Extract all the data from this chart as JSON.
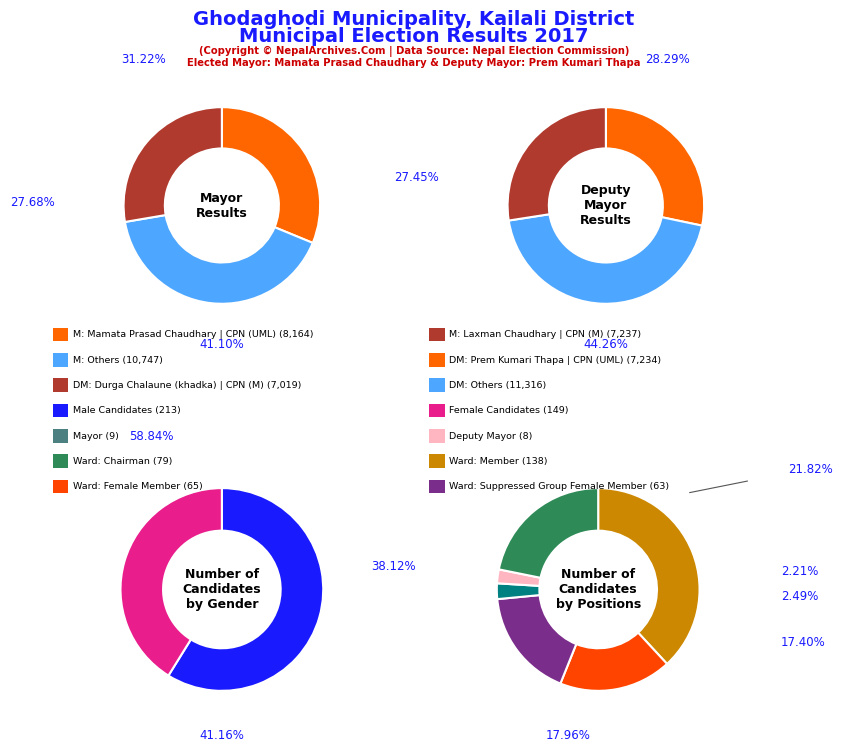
{
  "title_line1": "Ghodaghodi Municipality, Kailali District",
  "title_line2": "Municipal Election Results 2017",
  "subtitle1": "(Copyright © NepalArchives.Com | Data Source: Nepal Election Commission)",
  "subtitle2": "Elected Mayor: Mamata Prasad Chaudhary & Deputy Mayor: Prem Kumari Thapa",
  "title_color": "#1a1aff",
  "subtitle_color": "#cc0000",
  "mayor_values": [
    31.22,
    41.1,
    27.68
  ],
  "mayor_colors": [
    "#ff6600",
    "#4da6ff",
    "#b03a2e"
  ],
  "mayor_label": "Mayor\nResults",
  "deputy_values": [
    28.29,
    44.26,
    27.45
  ],
  "deputy_colors": [
    "#ff6600",
    "#4da6ff",
    "#b03a2e"
  ],
  "deputy_label": "Deputy\nMayor\nResults",
  "gender_values": [
    58.84,
    41.16
  ],
  "gender_colors": [
    "#1a1aff",
    "#e91e8c"
  ],
  "gender_label": "Number of\nCandidates\nby Gender",
  "positions_values": [
    38.12,
    17.96,
    17.4,
    2.49,
    2.21,
    21.82
  ],
  "positions_colors": [
    "#cc8800",
    "#ff4400",
    "#7b2d8b",
    "#008080",
    "#ffb6c1",
    "#2e8b57"
  ],
  "positions_label": "Number of\nCandidates\nby Positions",
  "legend_left": [
    {
      "label": "M: Mamata Prasad Chaudhary | CPN (UML) (8,164)",
      "color": "#ff6600"
    },
    {
      "label": "M: Others (10,747)",
      "color": "#4da6ff"
    },
    {
      "label": "DM: Durga Chalaune (khadka) | CPN (M) (7,019)",
      "color": "#b03a2e"
    },
    {
      "label": "Male Candidates (213)",
      "color": "#1a1aff"
    },
    {
      "label": "Mayor (9)",
      "color": "#4d8080"
    },
    {
      "label": "Ward: Chairman (79)",
      "color": "#2e8b57"
    },
    {
      "label": "Ward: Female Member (65)",
      "color": "#ff4400"
    }
  ],
  "legend_right": [
    {
      "label": "M: Laxman Chaudhary | CPN (M) (7,237)",
      "color": "#b03a2e"
    },
    {
      "label": "DM: Prem Kumari Thapa | CPN (UML) (7,234)",
      "color": "#ff6600"
    },
    {
      "label": "DM: Others (11,316)",
      "color": "#4da6ff"
    },
    {
      "label": "Female Candidates (149)",
      "color": "#e91e8c"
    },
    {
      "label": "Deputy Mayor (8)",
      "color": "#ffb6c1"
    },
    {
      "label": "Ward: Member (138)",
      "color": "#cc8800"
    },
    {
      "label": "Ward: Suppressed Group Female Member (63)",
      "color": "#7b2d8b"
    }
  ],
  "pct_color": "#1a1aff",
  "center_text_color": "#000000",
  "background_color": "#ffffff"
}
